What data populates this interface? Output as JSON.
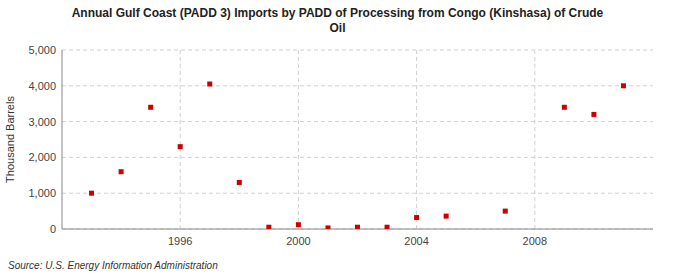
{
  "chart_data": {
    "type": "scatter",
    "title": "Annual Gulf Coast (PADD 3) Imports by PADD of Processing from Congo (Kinshasa) of Crude\nOil",
    "ylabel": "Thousand Barrels",
    "source": "Source: U.S. Energy Information Administration",
    "color": "#cc0000",
    "marker": "square",
    "grid": true,
    "xlim": [
      1992,
      2012
    ],
    "ylim": [
      0,
      5000
    ],
    "xticks": [
      1996,
      2000,
      2004,
      2008
    ],
    "yticks": [
      0,
      {
        "value": 1000,
        "label": "1,000"
      },
      {
        "value": 2000,
        "label": "2,000"
      },
      {
        "value": 3000,
        "label": "3,000"
      },
      {
        "value": 4000,
        "label": "4,000"
      },
      {
        "value": 5000,
        "label": "5,000"
      }
    ],
    "x": [
      1993,
      1994,
      1995,
      1996,
      1997,
      1998,
      1999,
      2000,
      2001,
      2002,
      2003,
      2004,
      2005,
      2007,
      2009,
      2010,
      2011
    ],
    "values": [
      1000,
      1600,
      3400,
      2300,
      4050,
      1300,
      50,
      120,
      30,
      50,
      50,
      320,
      360,
      500,
      3400,
      3200,
      4000
    ]
  }
}
